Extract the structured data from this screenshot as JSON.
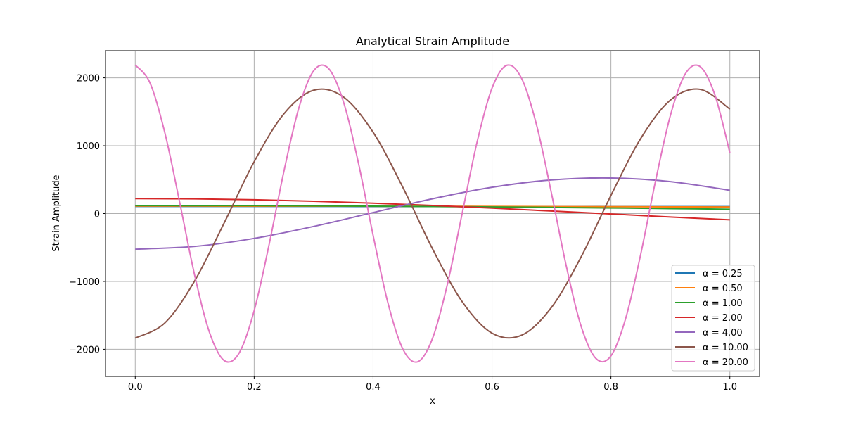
{
  "chart_data": {
    "type": "line",
    "title": "Analytical Strain Amplitude",
    "xlabel": "x",
    "ylabel": "Strain Amplitude",
    "xlim": [
      -0.05,
      1.05
    ],
    "ylim": [
      -2400,
      2400
    ],
    "xticks": [
      0.0,
      0.2,
      0.4,
      0.6,
      0.8,
      1.0
    ],
    "xtick_labels": [
      "0.0",
      "0.2",
      "0.4",
      "0.6",
      "0.8",
      "1.0"
    ],
    "yticks": [
      -2000,
      -1000,
      0,
      1000,
      2000
    ],
    "ytick_labels": [
      "−2000",
      "−1000",
      "0",
      "1000",
      "2000"
    ],
    "grid": true,
    "legend_position": "lower-right",
    "series": [
      {
        "name": "α = 0.25",
        "color": "#1f77b4",
        "x_step": 0.1,
        "values": [
          105,
          105,
          105,
          105,
          104,
          104,
          104,
          103,
          103,
          102,
          102
        ]
      },
      {
        "name": "α = 0.50",
        "color": "#ff7f0e",
        "x_step": 0.1,
        "values": [
          110,
          110,
          109,
          109,
          108,
          107,
          105,
          103,
          101,
          99,
          97
        ]
      },
      {
        "name": "α = 1.00",
        "color": "#2ca02c",
        "x_step": 0.1,
        "values": [
          118,
          117,
          116,
          113,
          109,
          104,
          97,
          90,
          82,
          73,
          64
        ]
      },
      {
        "name": "α = 2.00",
        "color": "#d62728",
        "x_step": 0.1,
        "values": [
          220,
          216,
          203,
          182,
          153,
          119,
          80,
          37,
          -6,
          -50,
          -92
        ]
      },
      {
        "name": "α = 4.00",
        "color": "#9467bd",
        "x_step": 0.1,
        "values": [
          -525,
          -484,
          -366,
          -190,
          15,
          218,
          387,
          495,
          524,
          471,
          343
        ]
      },
      {
        "name": "α = 10.00",
        "color": "#8c564b",
        "x_step": 0.05,
        "values": [
          -1835,
          -1610,
          -991,
          -130,
          764,
          1470,
          1817,
          1719,
          1199,
          387,
          -521,
          -1300,
          -1762,
          -1792,
          -1383,
          -636,
          267,
          1105,
          1672,
          1830,
          1540
        ]
      },
      {
        "name": "α = 20.00",
        "color": "#e377c2",
        "x_step": 0.025,
        "values": [
          2190,
          1922,
          1183,
          155,
          -911,
          -1754,
          -2168,
          -2051,
          -1431,
          -462,
          621,
          1552,
          2103,
          2139,
          1651,
          759,
          -319,
          -1318,
          -1995,
          -2184,
          -1838,
          -1041,
          10,
          1058,
          1848,
          2185,
          1987,
          1303,
          299,
          -777,
          -1664,
          -2137,
          -2097,
          -1538,
          -603,
          480,
          1446,
          2058,
          2165,
          1743,
          894
        ]
      }
    ]
  }
}
